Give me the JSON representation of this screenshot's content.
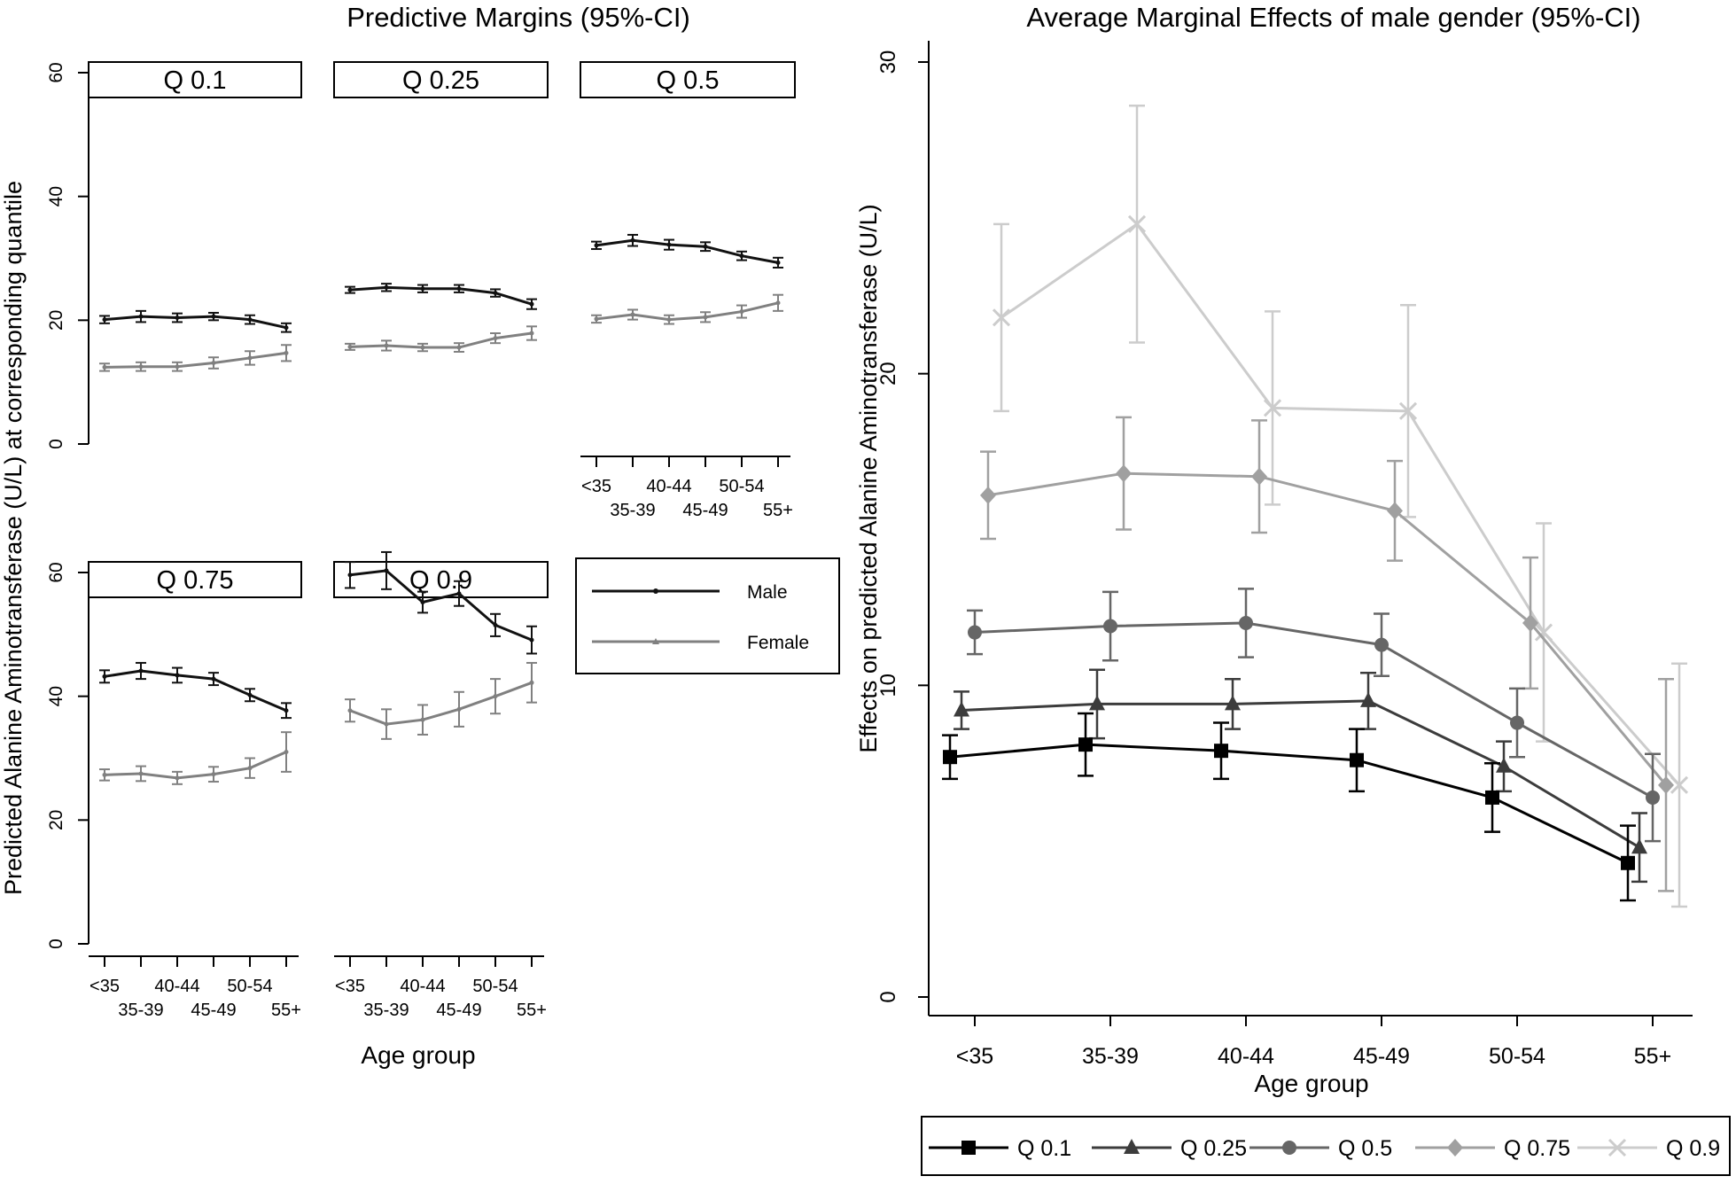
{
  "left": {
    "title": "Predictive Margins (95%-CI)",
    "ylabel": "Predicted Alanine Aminotransferase (U/L) at corresponding quantile",
    "xlabel": "Age group",
    "age_top": [
      "<35",
      "40-44",
      "50-54"
    ],
    "age_bottom": [
      "35-39",
      "45-49",
      "55+"
    ],
    "yticks": [
      "0",
      "20",
      "40",
      "60"
    ],
    "legend": {
      "male": "Male",
      "female": "Female"
    }
  },
  "right": {
    "title": "Average Marginal Effects of male gender (95%-CI)",
    "ylabel": "Effects on predicted Alanine Aminotransferase (U/L)",
    "xlabel": "Age group",
    "yticks": [
      "0",
      "10",
      "20",
      "30"
    ]
  },
  "colors": {
    "male": "#111111",
    "female": "#808080",
    "q01": "#000000",
    "q025": "#3c3c3c",
    "q05": "#666666",
    "q075": "#a0a0a0",
    "q09": "#cccccc"
  },
  "chart_data": [
    {
      "type": "line",
      "title": "Predictive Margins (95%-CI)",
      "xlabel": "Age group",
      "ylabel": "Predicted Alanine Aminotransferase (U/L) at corresponding quantile",
      "categories": [
        "<35",
        "35-39",
        "40-44",
        "45-49",
        "50-54",
        "55+"
      ],
      "ylim": [
        0,
        60
      ],
      "panels": [
        {
          "label": "Q 0.1",
          "male": [
            20.1,
            20.6,
            20.4,
            20.6,
            20.1,
            18.8
          ],
          "male_ci": [
            0.6,
            0.9,
            0.7,
            0.6,
            0.7,
            0.7
          ],
          "female": [
            12.4,
            12.5,
            12.5,
            13.1,
            13.9,
            14.7
          ],
          "female_ci": [
            0.6,
            0.7,
            0.7,
            0.9,
            1.1,
            1.3
          ]
        },
        {
          "label": "Q 0.25",
          "male": [
            24.9,
            25.3,
            25.1,
            25.1,
            24.4,
            22.6
          ],
          "male_ci": [
            0.5,
            0.6,
            0.6,
            0.6,
            0.6,
            0.8
          ],
          "female": [
            15.7,
            15.9,
            15.6,
            15.6,
            17.1,
            17.9
          ],
          "female_ci": [
            0.5,
            0.8,
            0.6,
            0.7,
            0.8,
            1.1
          ]
        },
        {
          "label": "Q 0.5",
          "male": [
            32.1,
            32.9,
            32.2,
            31.9,
            30.4,
            29.3
          ],
          "male_ci": [
            0.6,
            0.9,
            0.8,
            0.7,
            0.7,
            0.8
          ],
          "female": [
            20.2,
            20.9,
            20.1,
            20.5,
            21.4,
            22.8
          ],
          "female_ci": [
            0.6,
            0.8,
            0.7,
            0.8,
            1.0,
            1.3
          ]
        },
        {
          "label": "Q 0.75",
          "male": [
            43.2,
            44.1,
            43.4,
            42.8,
            40.2,
            37.7
          ],
          "male_ci": [
            1.0,
            1.3,
            1.2,
            1.0,
            1.0,
            1.2
          ],
          "female": [
            27.3,
            27.5,
            26.8,
            27.4,
            28.4,
            31.0
          ],
          "female_ci": [
            0.9,
            1.2,
            1.0,
            1.2,
            1.6,
            3.2
          ]
        },
        {
          "label": "Q 0.9",
          "male": [
            59.6,
            60.3,
            55.2,
            56.6,
            51.5,
            49.1
          ],
          "male_ci": [
            2.1,
            3.0,
            1.7,
            2.0,
            1.8,
            2.2
          ],
          "female": [
            37.7,
            35.5,
            36.2,
            37.9,
            40.0,
            42.2
          ],
          "female_ci": [
            1.8,
            2.4,
            2.4,
            2.8,
            2.8,
            3.2
          ]
        }
      ],
      "legend": [
        "Male",
        "Female"
      ]
    },
    {
      "type": "line",
      "title": "Average Marginal Effects of male gender (95%-CI)",
      "xlabel": "Age group",
      "ylabel": "Effects on predicted Alanine Aminotransferase (U/L)",
      "categories": [
        "<35",
        "35-39",
        "40-44",
        "45-49",
        "50-54",
        "55+"
      ],
      "ylim": [
        0,
        30
      ],
      "series": [
        {
          "name": "Q 0.1",
          "marker": "square",
          "values": [
            7.7,
            8.1,
            7.9,
            7.6,
            6.4,
            4.3
          ],
          "ci": [
            0.7,
            1.0,
            0.9,
            1.0,
            1.1,
            1.2
          ]
        },
        {
          "name": "Q 0.25",
          "marker": "triangle",
          "values": [
            9.2,
            9.4,
            9.4,
            9.5,
            7.4,
            4.8
          ],
          "ci": [
            0.6,
            1.1,
            0.8,
            0.9,
            0.8,
            1.1
          ]
        },
        {
          "name": "Q 0.5",
          "marker": "circle",
          "values": [
            11.7,
            11.9,
            12.0,
            11.3,
            8.8,
            6.4
          ],
          "ci": [
            0.7,
            1.1,
            1.1,
            1.0,
            1.1,
            1.4
          ]
        },
        {
          "name": "Q 0.75",
          "marker": "diamond",
          "values": [
            16.1,
            16.8,
            16.7,
            15.6,
            12.0,
            6.8
          ],
          "ci": [
            1.4,
            1.8,
            1.8,
            1.6,
            2.1,
            3.4
          ]
        },
        {
          "name": "Q 0.9",
          "marker": "x",
          "values": [
            21.8,
            24.8,
            18.9,
            18.8,
            11.7,
            6.8
          ],
          "ci": [
            3.0,
            3.8,
            3.1,
            3.4,
            3.5,
            3.9
          ]
        }
      ],
      "legend": [
        "Q 0.1",
        "Q 0.25",
        "Q 0.5",
        "Q 0.75",
        "Q 0.9"
      ]
    }
  ]
}
